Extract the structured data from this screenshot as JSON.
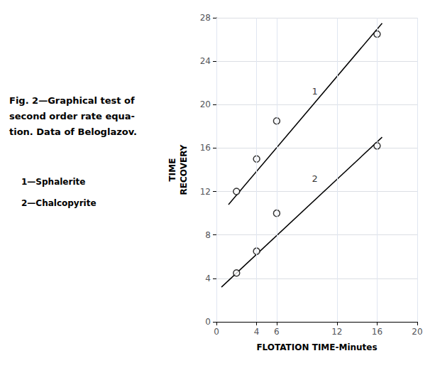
{
  "chart_data": {
    "type": "scatter",
    "title": "Fig. 2—Graphical test of\nsecond order rate equa-\ntion. Data of Beloglazov.",
    "x_label": "FLOTATION TIME-Minutes",
    "y_label": "TIME\nRECOVERY",
    "xlim": [
      0,
      20
    ],
    "xticks": [
      0,
      4,
      6,
      12,
      16,
      20
    ],
    "ylim": [
      0,
      28
    ],
    "yticks": [
      0,
      4,
      8,
      12,
      16,
      20,
      24,
      28
    ],
    "grid": true,
    "series": [
      {
        "name": "1—Sphalerite",
        "color": "#000000",
        "marker": "circle",
        "x": [
          2,
          4,
          6,
          16
        ],
        "values": [
          12.0,
          15.0,
          18.5,
          26.5
        ],
        "fit_x": [
          1.2,
          16.5
        ],
        "fit_values": [
          10.8,
          27.5
        ]
      },
      {
        "name": "2—Chalcopyrite",
        "color": "#000000",
        "marker": "circle",
        "x": [
          2,
          4,
          6,
          16
        ],
        "values": [
          4.5,
          6.5,
          10.0,
          16.2
        ],
        "fit_x": [
          0.5,
          16.5
        ],
        "fit_values": [
          3.2,
          17.0
        ]
      }
    ],
    "annotations": [
      {
        "text": "1",
        "x": 9.8,
        "y": 21.2
      },
      {
        "text": "2",
        "x": 9.8,
        "y": 13.2
      }
    ]
  }
}
